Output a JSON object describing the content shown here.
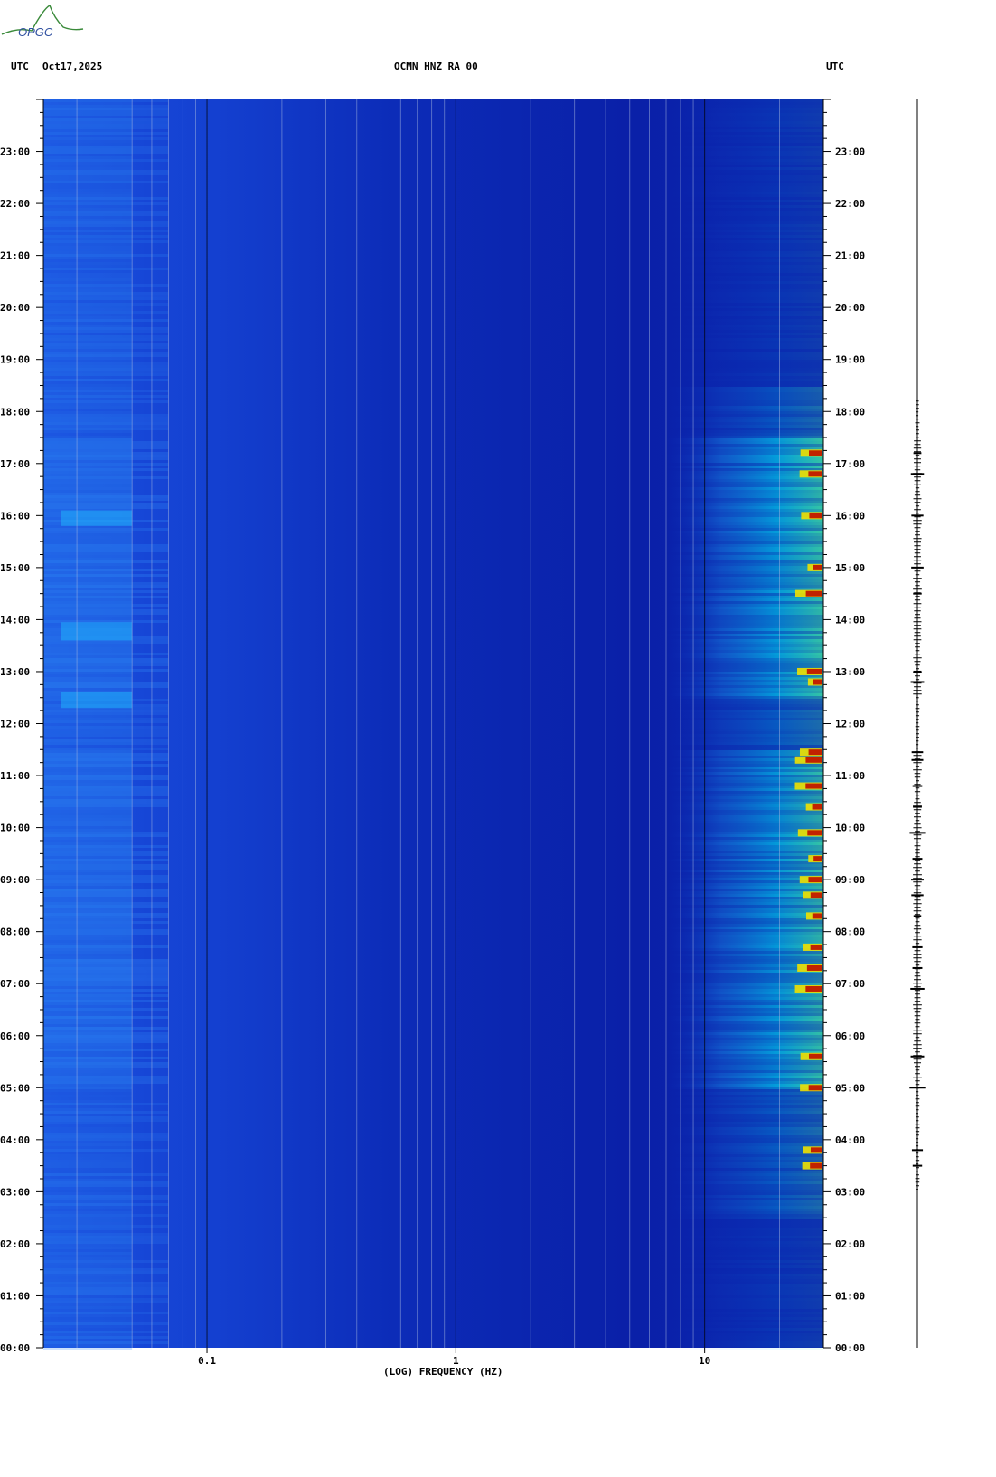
{
  "header": {
    "logo_text": "OPGC",
    "left_label": "UTC",
    "date": "Oct17,2025",
    "station": "OCMN HNZ RA 00",
    "right_label": "UTC"
  },
  "colors": {
    "background_low": "#0a1aa8",
    "low_band": "#1a5ae0",
    "mid": "#00c8ff",
    "high": "#f0f000",
    "peak": "#a01000"
  },
  "chart_data": {
    "type": "heatmap",
    "title": "OCMN HNZ RA 00",
    "xlabel": "(LOG) FREQUENCY (HZ)",
    "x_scale": "log",
    "xlim": [
      0.022,
      30
    ],
    "x_ticks": [
      {
        "value": 0.1,
        "label": "0.1"
      },
      {
        "value": 1,
        "label": "1"
      },
      {
        "value": 10,
        "label": "10"
      }
    ],
    "y_ticks": [
      "00:00",
      "01:00",
      "02:00",
      "03:00",
      "04:00",
      "05:00",
      "06:00",
      "07:00",
      "08:00",
      "09:00",
      "10:00",
      "11:00",
      "12:00",
      "13:00",
      "14:00",
      "15:00",
      "16:00",
      "17:00",
      "18:00",
      "19:00",
      "20:00",
      "21:00",
      "22:00",
      "23:00"
    ],
    "ylim_hours": [
      0,
      24
    ],
    "high_energy_band_hz": [
      10,
      30
    ],
    "strong_activity_hours": [
      [
        5,
        11.5
      ],
      [
        12.5,
        17.5
      ]
    ],
    "trace_event_hours": [
      3.5,
      3.8,
      5.0,
      5.6,
      6.9,
      7.3,
      7.7,
      8.3,
      8.7,
      9.0,
      9.4,
      9.9,
      10.4,
      10.8,
      11.3,
      11.45,
      12.8,
      13.0,
      14.5,
      15.0,
      16.0,
      16.8,
      17.2
    ]
  }
}
